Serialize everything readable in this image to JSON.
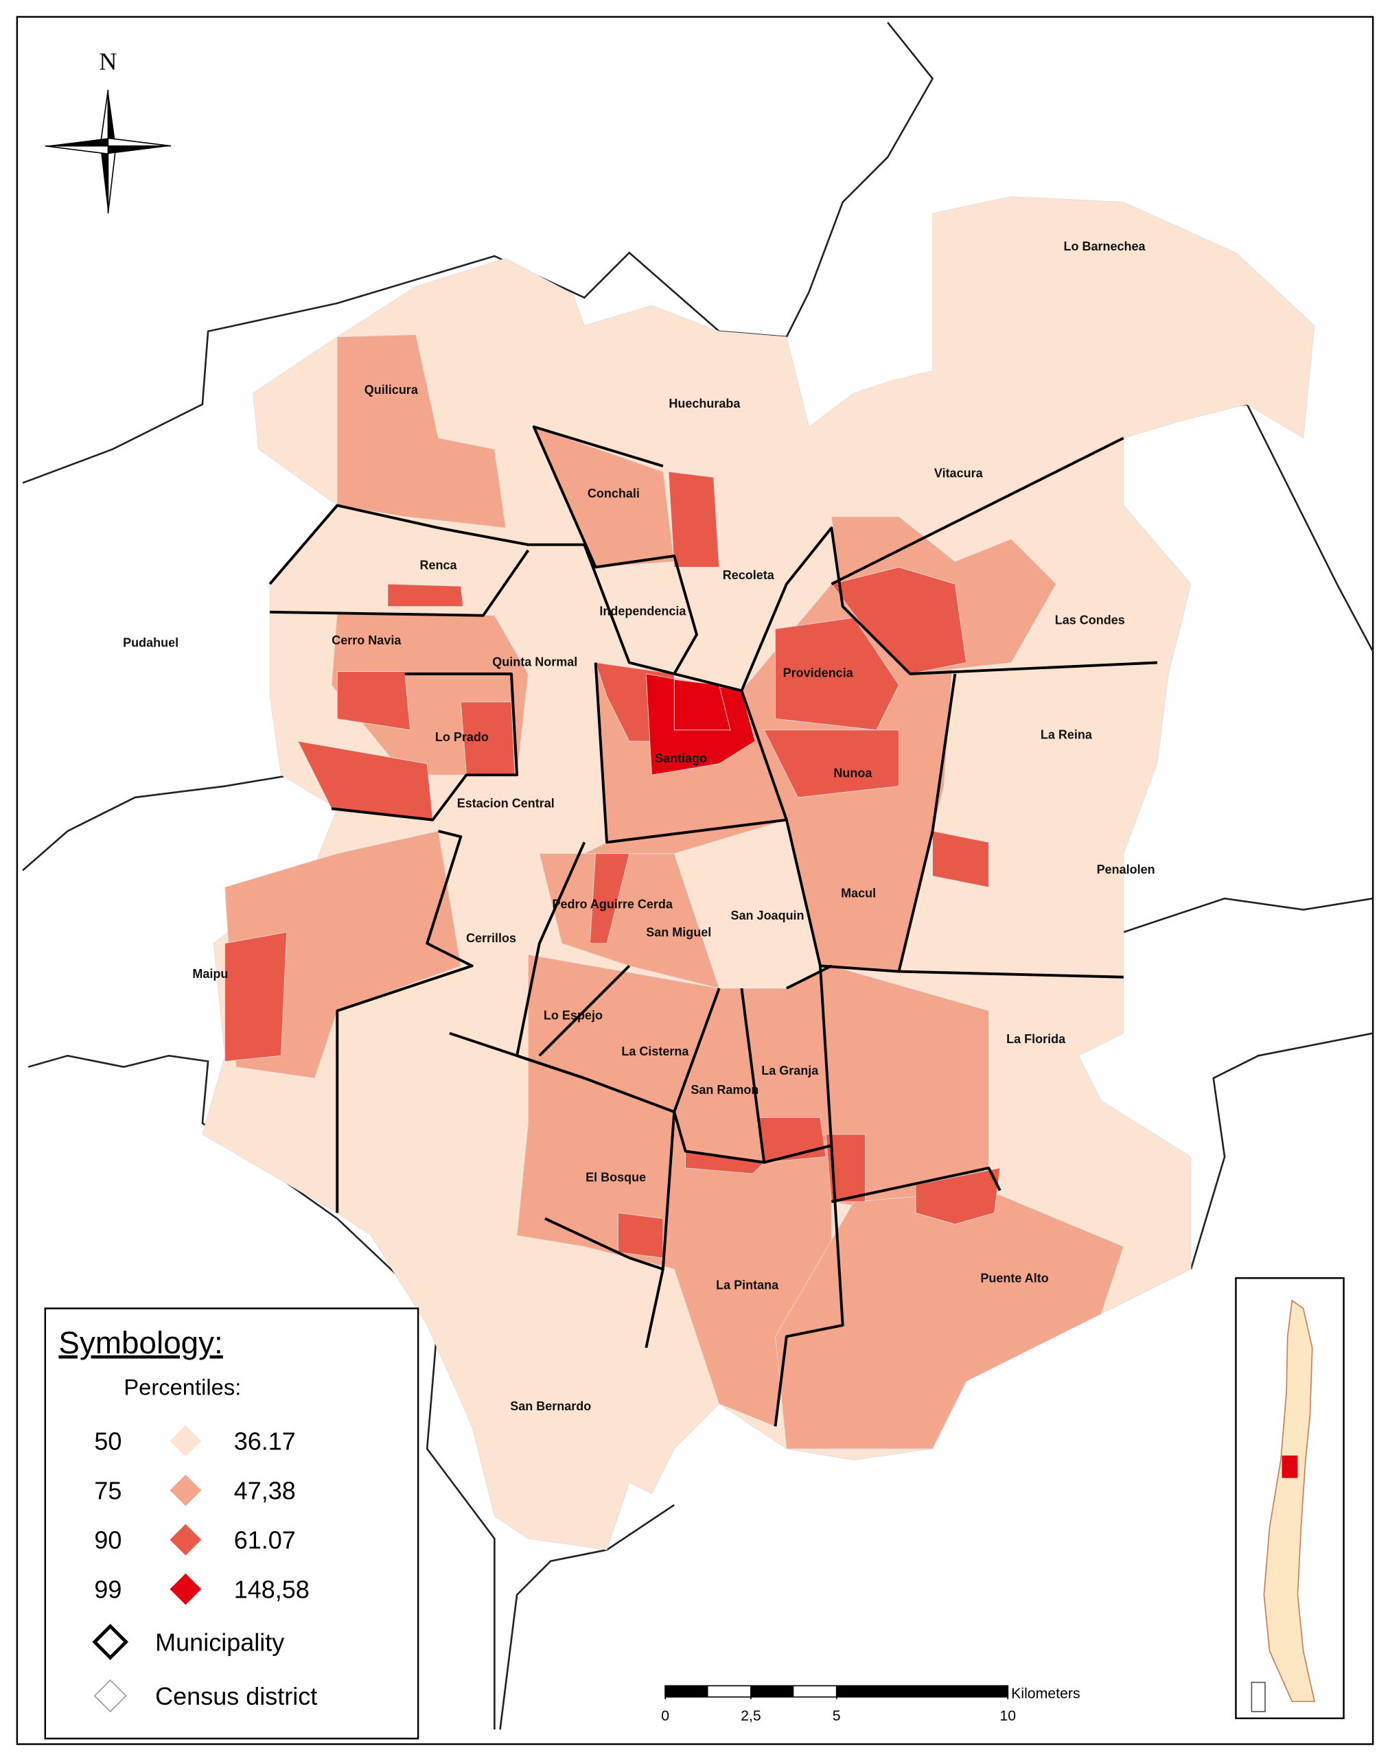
{
  "compass": "N",
  "municipalities": [
    "Lo Barnechea",
    "Quilicura",
    "Huechuraba",
    "Vitacura",
    "Conchali",
    "Recoleta",
    "Renca",
    "Independencia",
    "Las Condes",
    "Pudahuel",
    "Cerro Navia",
    "Quinta Normal",
    "Providencia",
    "Lo Prado",
    "La Reina",
    "Santiago",
    "Nunoa",
    "Estacion Central",
    "Penalolen",
    "Macul",
    "Pedro Aguirre Cerda",
    "San Joaquin",
    "San Miguel",
    "Cerrillos",
    "Maipu",
    "Lo Espejo",
    "La Florida",
    "La Cisterna",
    "La Granja",
    "San Ramon",
    "El Bosque",
    "Puente Alto",
    "La Pintana",
    "San Bernardo"
  ],
  "legend": {
    "title": "Symbology:",
    "subtitle": "Percentiles:",
    "classes": [
      {
        "percentile": 50,
        "value": "36.17",
        "color": "#fde3d2"
      },
      {
        "percentile": 75,
        "value": "47,38",
        "color": "#f4a68c"
      },
      {
        "percentile": 90,
        "value": "61.07",
        "color": "#e8594a"
      },
      {
        "percentile": 99,
        "value": "148,58",
        "color": "#e3000f"
      }
    ],
    "municipality": "Municipality",
    "census_district": "Census district"
  },
  "scale_bar": {
    "unit": "Kilometers",
    "ticks": [
      0,
      {
        "value": 2.5,
        "label": "2,5"
      },
      5,
      10
    ]
  }
}
